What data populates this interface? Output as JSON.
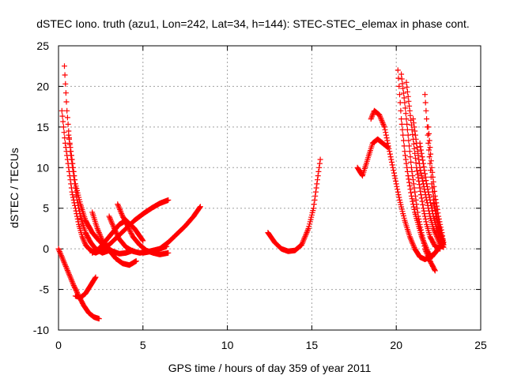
{
  "chart_data": {
    "type": "scatter",
    "title": "dSTEC Iono. truth (azu1, Lon=242, Lat=34, h=144): STEC-STEC_elemax in phase cont.",
    "xlabel": "GPS time / hours of day 359 of year 2011",
    "ylabel": "dSTEC  / TECUs",
    "xlim": [
      0,
      25
    ],
    "ylim": [
      -10,
      25
    ],
    "xticks": [
      0,
      5,
      10,
      15,
      20,
      25
    ],
    "yticks": [
      -10,
      -5,
      0,
      5,
      10,
      15,
      20,
      25
    ],
    "grid": true,
    "marker": "+",
    "color": "#ff0000",
    "series": [
      {
        "x": [
          0.0,
          0.3,
          0.6,
          0.9,
          1.2,
          1.5,
          1.8,
          2.1,
          2.4
        ],
        "y": [
          0.0,
          -1.5,
          -3.0,
          -4.5,
          -5.8,
          -7.0,
          -7.9,
          -8.4,
          -8.6
        ]
      },
      {
        "x": [
          1.0,
          1.3,
          1.6,
          1.9,
          2.2
        ],
        "y": [
          -5.8,
          -6.0,
          -5.5,
          -4.5,
          -3.5
        ]
      },
      {
        "x": [
          0.2,
          0.4,
          0.6,
          0.8,
          1.0,
          1.2,
          1.4,
          1.6,
          1.8,
          2.0,
          2.2,
          2.5
        ],
        "y": [
          17.0,
          13.0,
          10.0,
          7.0,
          5.0,
          3.0,
          1.5,
          0.5,
          0.0,
          -0.3,
          -0.5,
          -0.2
        ]
      },
      {
        "x": [
          0.35,
          0.5,
          0.7,
          0.9,
          1.1,
          1.3,
          1.6,
          1.9,
          2.2,
          2.6,
          3.0
        ],
        "y": [
          22.5,
          17.0,
          12.0,
          9.0,
          6.0,
          4.0,
          2.0,
          0.8,
          0.0,
          -0.5,
          -0.2
        ]
      },
      {
        "x": [
          0.6,
          0.8,
          1.0,
          1.3,
          1.6,
          2.0,
          2.4,
          2.8,
          3.2,
          3.6,
          4.0,
          4.4
        ],
        "y": [
          14.0,
          11.0,
          8.0,
          5.5,
          3.5,
          2.0,
          1.0,
          0.2,
          -0.3,
          -0.6,
          -0.5,
          -0.2
        ]
      },
      {
        "x": [
          2.0,
          2.3,
          2.6,
          3.0,
          3.4,
          3.8,
          4.2,
          4.6
        ],
        "y": [
          4.5,
          2.5,
          1.0,
          -0.2,
          -1.2,
          -1.8,
          -2.0,
          -1.5
        ]
      },
      {
        "x": [
          2.0,
          2.4,
          2.8,
          3.2,
          3.6,
          4.0,
          4.5,
          5.0
        ],
        "y": [
          -0.5,
          0.0,
          1.0,
          2.0,
          3.0,
          3.5,
          2.5,
          1.0
        ]
      },
      {
        "x": [
          3.0,
          3.3,
          3.6,
          4.0,
          4.4,
          4.8,
          5.2,
          5.6,
          6.0,
          6.4
        ],
        "y": [
          4.0,
          2.5,
          1.2,
          0.2,
          -0.3,
          -0.5,
          -0.4,
          -0.2,
          0.0,
          0.3
        ]
      },
      {
        "x": [
          3.5,
          3.8,
          4.1,
          4.4,
          4.8,
          5.2,
          5.6,
          6.0,
          6.5
        ],
        "y": [
          5.5,
          4.0,
          2.8,
          1.5,
          0.5,
          -0.2,
          -0.5,
          -0.7,
          -0.5
        ]
      },
      {
        "x": [
          2.5,
          3.0,
          3.5,
          4.0,
          4.5,
          5.0,
          5.5,
          6.0,
          6.5
        ],
        "y": [
          0.0,
          0.5,
          1.5,
          2.5,
          3.5,
          4.3,
          5.0,
          5.6,
          6.0
        ]
      },
      {
        "x": [
          5.0,
          5.5,
          6.0,
          6.5,
          7.0,
          7.5,
          8.0,
          8.4
        ],
        "y": [
          -0.5,
          -0.3,
          0.0,
          0.8,
          1.8,
          2.8,
          4.0,
          5.2
        ]
      },
      {
        "x": [
          12.4,
          12.8,
          13.2,
          13.6,
          14.0,
          14.4,
          14.8,
          15.1,
          15.3,
          15.5
        ],
        "y": [
          2.0,
          0.8,
          0.0,
          -0.3,
          -0.2,
          0.5,
          2.5,
          5.0,
          8.0,
          11.0
        ]
      },
      {
        "x": [
          17.7,
          18.0,
          18.3,
          18.6,
          18.9,
          19.2,
          19.5
        ],
        "y": [
          10.0,
          9.0,
          11.0,
          13.0,
          13.5,
          13.0,
          12.5
        ]
      },
      {
        "x": [
          18.5,
          18.7,
          19.0,
          19.3,
          19.6,
          19.9,
          20.2,
          20.5,
          20.8,
          21.1,
          21.4,
          21.7,
          22.0,
          22.3,
          22.6
        ],
        "y": [
          16.0,
          17.0,
          16.5,
          15.0,
          12.0,
          9.0,
          6.0,
          3.5,
          1.5,
          0.0,
          -1.0,
          -1.3,
          -1.0,
          -0.5,
          0.3
        ]
      },
      {
        "x": [
          20.1,
          20.3,
          20.5,
          20.7,
          20.9,
          21.1,
          21.3,
          21.5,
          21.7,
          21.9,
          22.1,
          22.3,
          22.6
        ],
        "y": [
          22.0,
          16.0,
          12.0,
          9.0,
          6.5,
          4.5,
          3.0,
          1.5,
          0.5,
          -0.5,
          -1.0,
          -0.5,
          0.3
        ]
      },
      {
        "x": [
          20.3,
          20.5,
          20.7,
          20.9,
          21.1,
          21.3,
          21.5,
          21.7,
          22.0,
          22.3
        ],
        "y": [
          21.5,
          18.0,
          14.0,
          10.0,
          7.0,
          4.0,
          2.0,
          0.0,
          -1.5,
          -2.7
        ]
      },
      {
        "x": [
          20.6,
          20.8,
          21.0,
          21.2,
          21.4,
          21.6,
          21.8,
          22.0,
          22.3,
          22.6
        ],
        "y": [
          20.5,
          17.0,
          13.5,
          10.0,
          7.5,
          5.0,
          3.0,
          1.5,
          0.3,
          0.0
        ]
      },
      {
        "x": [
          21.0,
          21.2,
          21.4,
          21.6,
          21.8,
          22.0,
          22.2,
          22.4,
          22.6,
          22.8
        ],
        "y": [
          16.0,
          13.0,
          10.0,
          8.0,
          6.0,
          4.0,
          2.5,
          1.5,
          0.5,
          0.2
        ]
      },
      {
        "x": [
          21.4,
          21.6,
          21.8,
          22.0,
          22.2,
          22.4,
          22.6,
          22.8
        ],
        "y": [
          13.0,
          10.5,
          8.0,
          6.0,
          4.0,
          2.5,
          1.2,
          0.5
        ]
      },
      {
        "x": [
          21.7,
          21.9,
          22.1,
          22.3,
          22.5,
          22.7,
          22.8
        ],
        "y": [
          19.0,
          13.0,
          8.0,
          5.0,
          3.0,
          1.5,
          0.8
        ]
      },
      {
        "x": [
          21.9,
          22.1,
          22.3,
          22.5,
          22.7,
          22.8
        ],
        "y": [
          15.0,
          10.0,
          6.5,
          4.0,
          2.0,
          0.8
        ]
      },
      {
        "x": [
          22.2,
          22.4,
          22.6,
          22.8
        ],
        "y": [
          6.0,
          3.5,
          1.8,
          0.5
        ]
      }
    ]
  }
}
